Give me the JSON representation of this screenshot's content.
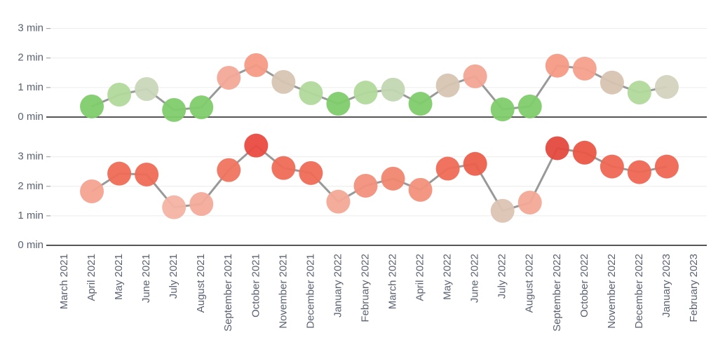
{
  "chart_data": [
    {
      "type": "line",
      "line_color": "#999999",
      "ylim": [
        0,
        3.3
      ],
      "yticks": [
        {
          "value": 0,
          "label": "0 min"
        },
        {
          "value": 1,
          "label": "1 min"
        },
        {
          "value": 2,
          "label": "2 min"
        },
        {
          "value": 3,
          "label": "3 min"
        }
      ],
      "grid": true,
      "values": [
        null,
        0.36,
        0.76,
        0.95,
        0.24,
        0.33,
        1.33,
        1.76,
        1.19,
        0.81,
        0.45,
        0.83,
        0.93,
        0.45,
        1.07,
        1.38,
        0.26,
        0.36,
        1.74,
        1.64,
        1.17,
        0.83,
        1.02,
        null
      ],
      "marker_colors": [
        null,
        "#7fcc6c",
        "#b2d99c",
        "#c9d7b9",
        "#7fcc6c",
        "#7fcc6c",
        "#f3a897",
        "#f59a85",
        "#d8c5b3",
        "#b2d99c",
        "#7fcc6c",
        "#b2d99c",
        "#c2d7b3",
        "#7fcc6c",
        "#d8c5b3",
        "#f2a593",
        "#7fcc6c",
        "#7fcc6c",
        "#f59a85",
        "#f4a08c",
        "#d8c3b1",
        "#b2d99c",
        "#d3d3bf",
        null
      ]
    },
    {
      "type": "line",
      "line_color": "#999999",
      "ylim": [
        0,
        3.8
      ],
      "yticks": [
        {
          "value": 0,
          "label": "0 min"
        },
        {
          "value": 1,
          "label": "1 min"
        },
        {
          "value": 2,
          "label": "2 min"
        },
        {
          "value": 3,
          "label": "3 min"
        }
      ],
      "grid": true,
      "categories": [
        "March 2021",
        "April 2021",
        "May 2021",
        "June 2021",
        "July 2021",
        "August 2021",
        "September 2021",
        "October 2021",
        "November 2021",
        "December 2021",
        "January 2022",
        "February 2022",
        "March 2022",
        "April 2022",
        "May 2022",
        "June 2022",
        "July 2022",
        "August 2022",
        "September 2022",
        "October 2022",
        "November 2022",
        "December 2022",
        "January 2023",
        "February 2023"
      ],
      "values": [
        null,
        1.83,
        2.43,
        2.4,
        1.29,
        1.4,
        2.55,
        3.38,
        2.62,
        2.45,
        1.48,
        2.02,
        2.26,
        1.88,
        2.6,
        2.76,
        1.17,
        1.45,
        3.29,
        3.14,
        2.67,
        2.48,
        2.67,
        null
      ],
      "marker_colors": [
        null,
        "#f4a390",
        "#ef6c57",
        "#ef6c57",
        "#f4b3a3",
        "#f4ab9a",
        "#ef7560",
        "#e94b40",
        "#ef6c57",
        "#ef6c57",
        "#f4a996",
        "#f2907c",
        "#f08670",
        "#f2917c",
        "#ef6c57",
        "#ec5f4c",
        "#ddc4b3",
        "#f4a996",
        "#e44a3e",
        "#ea5646",
        "#ef6753",
        "#ef6753",
        "#ef6753",
        null
      ]
    }
  ]
}
